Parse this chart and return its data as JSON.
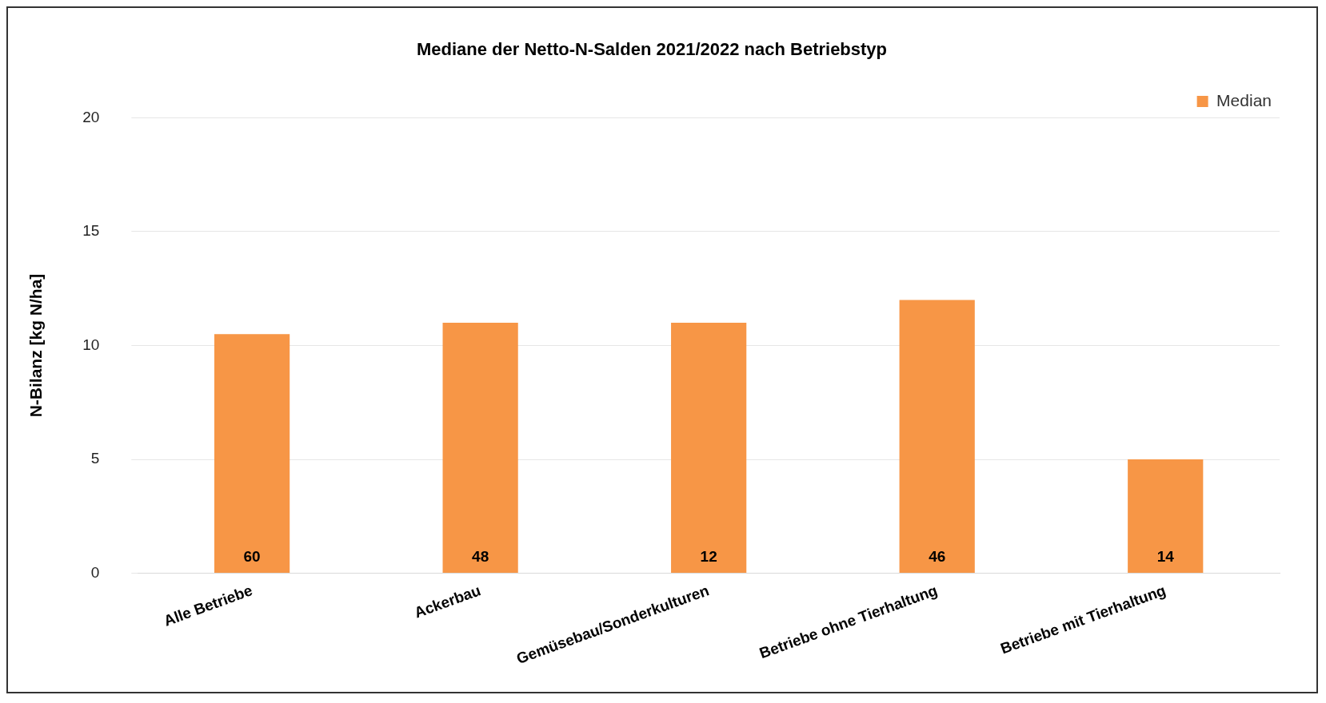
{
  "chart_data": {
    "type": "bar",
    "title": "Mediane der Netto-N-Salden 2021/2022 nach Betriebstyp",
    "ylabel": "N-Bilanz [kg N/ha]",
    "categories": [
      "Alle Betriebe",
      "Ackerbau",
      "Gemüsebau/Sonderkulturen",
      "Betriebe ohne Tierhaltung",
      "Betriebe mit Tierhaltung"
    ],
    "series": [
      {
        "name": "Median",
        "color": "#f79646",
        "values": [
          10.5,
          11,
          11,
          12,
          5
        ]
      }
    ],
    "ylim": [
      0,
      20
    ],
    "yticks": [
      0,
      5,
      10,
      15,
      20
    ],
    "grid": "y",
    "legend": "top right",
    "annotations": [
      {
        "text": "60",
        "x": "Alle Betriebe",
        "y": 0
      },
      {
        "text": "48",
        "x": "Ackerbau",
        "y": 0
      },
      {
        "text": "12",
        "x": "Gemüsebau/Sonderkulturen",
        "y": 0
      },
      {
        "text": "46",
        "x": "Betriebe ohne Tierhaltung",
        "y": 0
      },
      {
        "text": "14",
        "x": "Betriebe mit Tierhaltung",
        "y": 0
      }
    ]
  }
}
